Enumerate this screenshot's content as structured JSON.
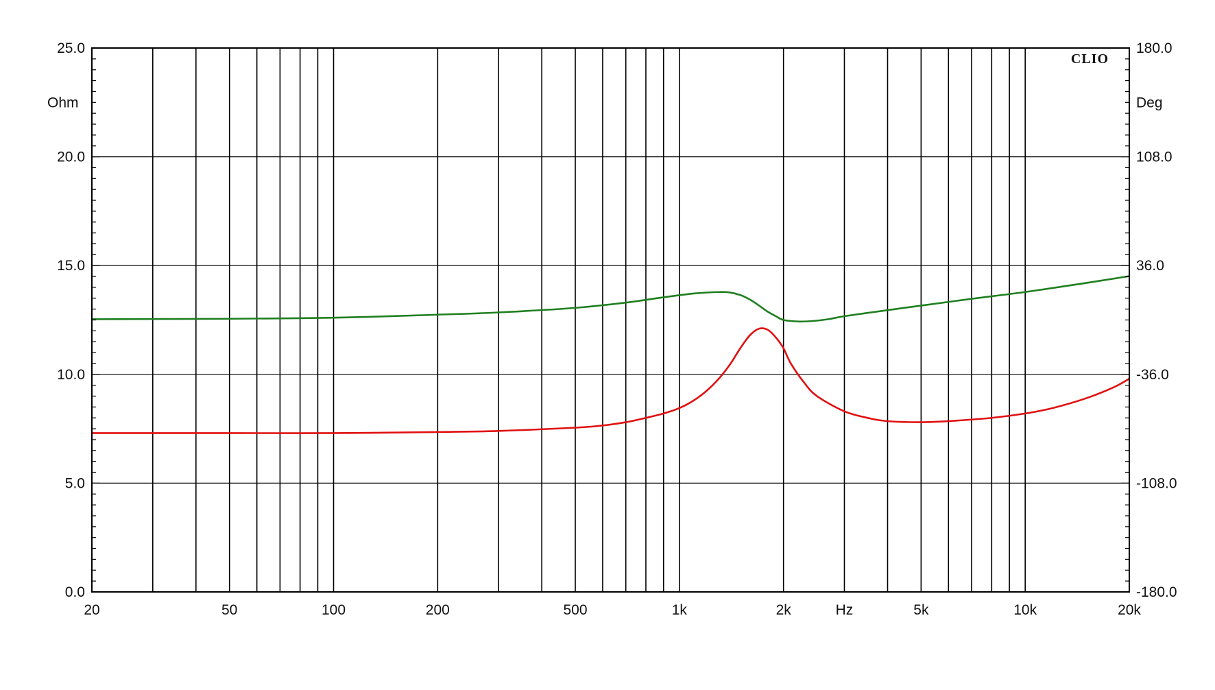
{
  "chart_data": {
    "type": "line",
    "brand": "CLIO",
    "x_scale": "log",
    "xlim": [
      20,
      20000
    ],
    "xlabel": "Hz",
    "x_ticks": [
      {
        "value": 20,
        "label": "20"
      },
      {
        "value": 50,
        "label": "50"
      },
      {
        "value": 100,
        "label": "100"
      },
      {
        "value": 200,
        "label": "200"
      },
      {
        "value": 500,
        "label": "500"
      },
      {
        "value": 1000,
        "label": "1k"
      },
      {
        "value": 2000,
        "label": "2k"
      },
      {
        "value": 5000,
        "label": "5k"
      },
      {
        "value": 10000,
        "label": "10k"
      },
      {
        "value": 20000,
        "label": "20k"
      }
    ],
    "y_left": {
      "label": "Ohm",
      "ylim": [
        0,
        25
      ],
      "ticks": [
        "0.0",
        "5.0",
        "10.0",
        "15.0",
        "20.0",
        "25.0"
      ]
    },
    "y_right": {
      "label": "Deg",
      "ylim": [
        -180,
        180
      ],
      "ticks": [
        "-180.0",
        "-108.0",
        "-36.0",
        "36.0",
        "108.0",
        "180.0"
      ]
    },
    "grid": true,
    "series": [
      {
        "axis": "left",
        "color": "#e01010",
        "points": [
          [
            20,
            7.3
          ],
          [
            50,
            7.3
          ],
          [
            100,
            7.3
          ],
          [
            200,
            7.35
          ],
          [
            300,
            7.4
          ],
          [
            500,
            7.55
          ],
          [
            600,
            7.65
          ],
          [
            700,
            7.8
          ],
          [
            800,
            8.0
          ],
          [
            900,
            8.2
          ],
          [
            1000,
            8.45
          ],
          [
            1100,
            8.8
          ],
          [
            1200,
            9.25
          ],
          [
            1300,
            9.8
          ],
          [
            1400,
            10.45
          ],
          [
            1500,
            11.2
          ],
          [
            1600,
            11.8
          ],
          [
            1700,
            12.1
          ],
          [
            1800,
            12.05
          ],
          [
            1900,
            11.7
          ],
          [
            2000,
            11.2
          ],
          [
            2100,
            10.5
          ],
          [
            2300,
            9.6
          ],
          [
            2500,
            9.0
          ],
          [
            3000,
            8.3
          ],
          [
            3500,
            8.0
          ],
          [
            4000,
            7.85
          ],
          [
            5000,
            7.8
          ],
          [
            6000,
            7.85
          ],
          [
            8000,
            8.0
          ],
          [
            10000,
            8.2
          ],
          [
            12000,
            8.45
          ],
          [
            15000,
            8.9
          ],
          [
            18000,
            9.4
          ],
          [
            20000,
            9.8
          ]
        ]
      },
      {
        "axis": "right",
        "color": "#1f7f1f",
        "points": [
          [
            20,
            0.5
          ],
          [
            50,
            0.8
          ],
          [
            100,
            1.5
          ],
          [
            200,
            3.5
          ],
          [
            300,
            5.0
          ],
          [
            500,
            8.0
          ],
          [
            700,
            11.5
          ],
          [
            900,
            15.0
          ],
          [
            1100,
            17.5
          ],
          [
            1300,
            18.5
          ],
          [
            1400,
            18.2
          ],
          [
            1500,
            16.5
          ],
          [
            1600,
            13.5
          ],
          [
            1700,
            9.5
          ],
          [
            1800,
            5.5
          ],
          [
            1900,
            2.5
          ],
          [
            2000,
            0.0
          ],
          [
            2200,
            -1.0
          ],
          [
            2400,
            -0.8
          ],
          [
            2700,
            0.5
          ],
          [
            3000,
            2.5
          ],
          [
            4000,
            6.5
          ],
          [
            5000,
            9.5
          ],
          [
            7000,
            14.0
          ],
          [
            10000,
            18.5
          ],
          [
            15000,
            24.5
          ],
          [
            20000,
            29.0
          ]
        ]
      }
    ]
  }
}
